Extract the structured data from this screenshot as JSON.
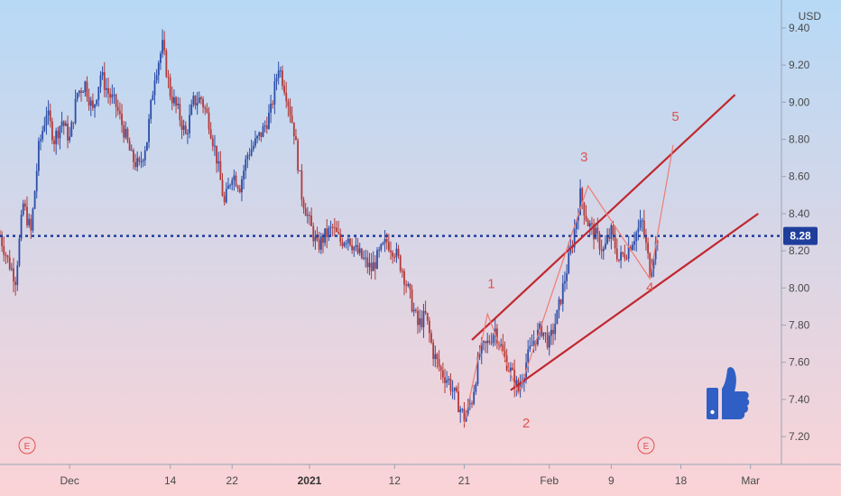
{
  "chart_data": {
    "type": "candlestick",
    "currency": "USD",
    "y_ticks": [
      7.2,
      7.4,
      7.6,
      7.8,
      8.0,
      8.2,
      8.4,
      8.6,
      8.8,
      9.0,
      9.2,
      9.4
    ],
    "y_tick_labels": [
      "7.20",
      "7.40",
      "7.60",
      "7.80",
      "8.00",
      "8.20",
      "8.40",
      "8.60",
      "8.80",
      "9.00",
      "9.20",
      "9.40"
    ],
    "ylim": [
      7.05,
      9.55
    ],
    "x_ticks": [
      {
        "label": "Dec",
        "bold": false,
        "day": 10
      },
      {
        "label": "14",
        "bold": false,
        "day": 23
      },
      {
        "label": "22",
        "bold": false,
        "day": 31
      },
      {
        "label": "2021",
        "bold": true,
        "day": 41
      },
      {
        "label": "12",
        "bold": false,
        "day": 52
      },
      {
        "label": "21",
        "bold": false,
        "day": 61
      },
      {
        "label": "Feb",
        "bold": false,
        "day": 72
      },
      {
        "label": "9",
        "bold": false,
        "day": 80
      },
      {
        "label": "18",
        "bold": false,
        "day": 89
      },
      {
        "label": "Mar",
        "bold": false,
        "day": 98
      }
    ],
    "xlim": [
      1,
      102
    ],
    "current_price": 8.28,
    "current_price_label": "8.28",
    "close_path": [
      [
        1,
        8.28
      ],
      [
        2,
        8.15
      ],
      [
        3,
        8.05
      ],
      [
        4,
        8.45
      ],
      [
        5,
        8.3
      ],
      [
        6,
        8.75
      ],
      [
        7,
        8.95
      ],
      [
        8,
        8.8
      ],
      [
        9,
        8.9
      ],
      [
        10,
        8.8
      ],
      [
        11,
        9.05
      ],
      [
        12,
        9.1
      ],
      [
        13,
        8.95
      ],
      [
        14,
        9.15
      ],
      [
        15,
        9.05
      ],
      [
        16,
        8.98
      ],
      [
        17,
        8.85
      ],
      [
        18,
        8.7
      ],
      [
        19,
        8.65
      ],
      [
        20,
        8.8
      ],
      [
        21,
        9.15
      ],
      [
        22,
        9.3
      ],
      [
        23,
        9.05
      ],
      [
        24,
        8.95
      ],
      [
        25,
        8.82
      ],
      [
        26,
        9.0
      ],
      [
        27,
        9.02
      ],
      [
        28,
        8.9
      ],
      [
        29,
        8.7
      ],
      [
        30,
        8.45
      ],
      [
        31,
        8.62
      ],
      [
        32,
        8.55
      ],
      [
        33,
        8.72
      ],
      [
        34,
        8.78
      ],
      [
        35,
        8.85
      ],
      [
        36,
        8.95
      ],
      [
        37,
        9.2
      ],
      [
        38,
        9.05
      ],
      [
        39,
        8.85
      ],
      [
        40,
        8.5
      ],
      [
        41,
        8.35
      ],
      [
        42,
        8.22
      ],
      [
        43,
        8.28
      ],
      [
        44,
        8.32
      ],
      [
        45,
        8.25
      ],
      [
        46,
        8.28
      ],
      [
        47,
        8.2
      ],
      [
        48,
        8.15
      ],
      [
        49,
        8.1
      ],
      [
        50,
        8.18
      ],
      [
        51,
        8.25
      ],
      [
        52,
        8.2
      ],
      [
        53,
        8.1
      ],
      [
        54,
        7.95
      ],
      [
        55,
        7.8
      ],
      [
        56,
        7.85
      ],
      [
        57,
        7.65
      ],
      [
        58,
        7.55
      ],
      [
        59,
        7.5
      ],
      [
        60,
        7.4
      ],
      [
        61,
        7.3
      ],
      [
        62,
        7.4
      ],
      [
        63,
        7.65
      ],
      [
        64,
        7.7
      ],
      [
        65,
        7.78
      ],
      [
        66,
        7.65
      ],
      [
        67,
        7.55
      ],
      [
        68,
        7.45
      ],
      [
        69,
        7.6
      ],
      [
        70,
        7.72
      ],
      [
        71,
        7.78
      ],
      [
        72,
        7.7
      ],
      [
        73,
        7.85
      ],
      [
        74,
        8.05
      ],
      [
        75,
        8.25
      ],
      [
        76,
        8.5
      ],
      [
        77,
        8.35
      ],
      [
        78,
        8.28
      ],
      [
        79,
        8.2
      ],
      [
        80,
        8.3
      ],
      [
        81,
        8.15
      ],
      [
        82,
        8.2
      ],
      [
        83,
        8.28
      ],
      [
        84,
        8.35
      ],
      [
        85,
        8.1
      ],
      [
        86,
        8.28
      ]
    ],
    "channel_upper": [
      [
        62,
        7.72
      ],
      [
        96,
        9.04
      ]
    ],
    "channel_lower": [
      [
        67,
        7.45
      ],
      [
        99,
        8.4
      ]
    ],
    "wave_path": [
      [
        61,
        7.27
      ],
      [
        64,
        7.86
      ],
      [
        68,
        7.43
      ],
      [
        77,
        8.55
      ],
      [
        85,
        8.05
      ],
      [
        88,
        8.77
      ]
    ],
    "wave_labels": [
      {
        "text": "1",
        "day": 64.5,
        "price": 8.0
      },
      {
        "text": "2",
        "day": 69.0,
        "price": 7.25
      },
      {
        "text": "3",
        "day": 76.5,
        "price": 8.68
      },
      {
        "text": "4",
        "day": 85.0,
        "price": 7.98
      },
      {
        "text": "5",
        "day": 88.3,
        "price": 8.9
      }
    ],
    "event_markers": [
      {
        "text": "E",
        "day": 4.5
      },
      {
        "text": "E",
        "day": 84.5
      }
    ]
  },
  "icons": {
    "thumbs_up": "thumbs-up-icon"
  },
  "colors": {
    "bg_top": "#b7d9f6",
    "bg_bottom": "#fbd3d6",
    "candle_up": "#2c4ea8",
    "candle_down": "#b23a3a",
    "channel": "#c0282f",
    "wave": "#ef7c72",
    "price_line": "#1f3e9c",
    "thumb": "#2f5fc4"
  }
}
